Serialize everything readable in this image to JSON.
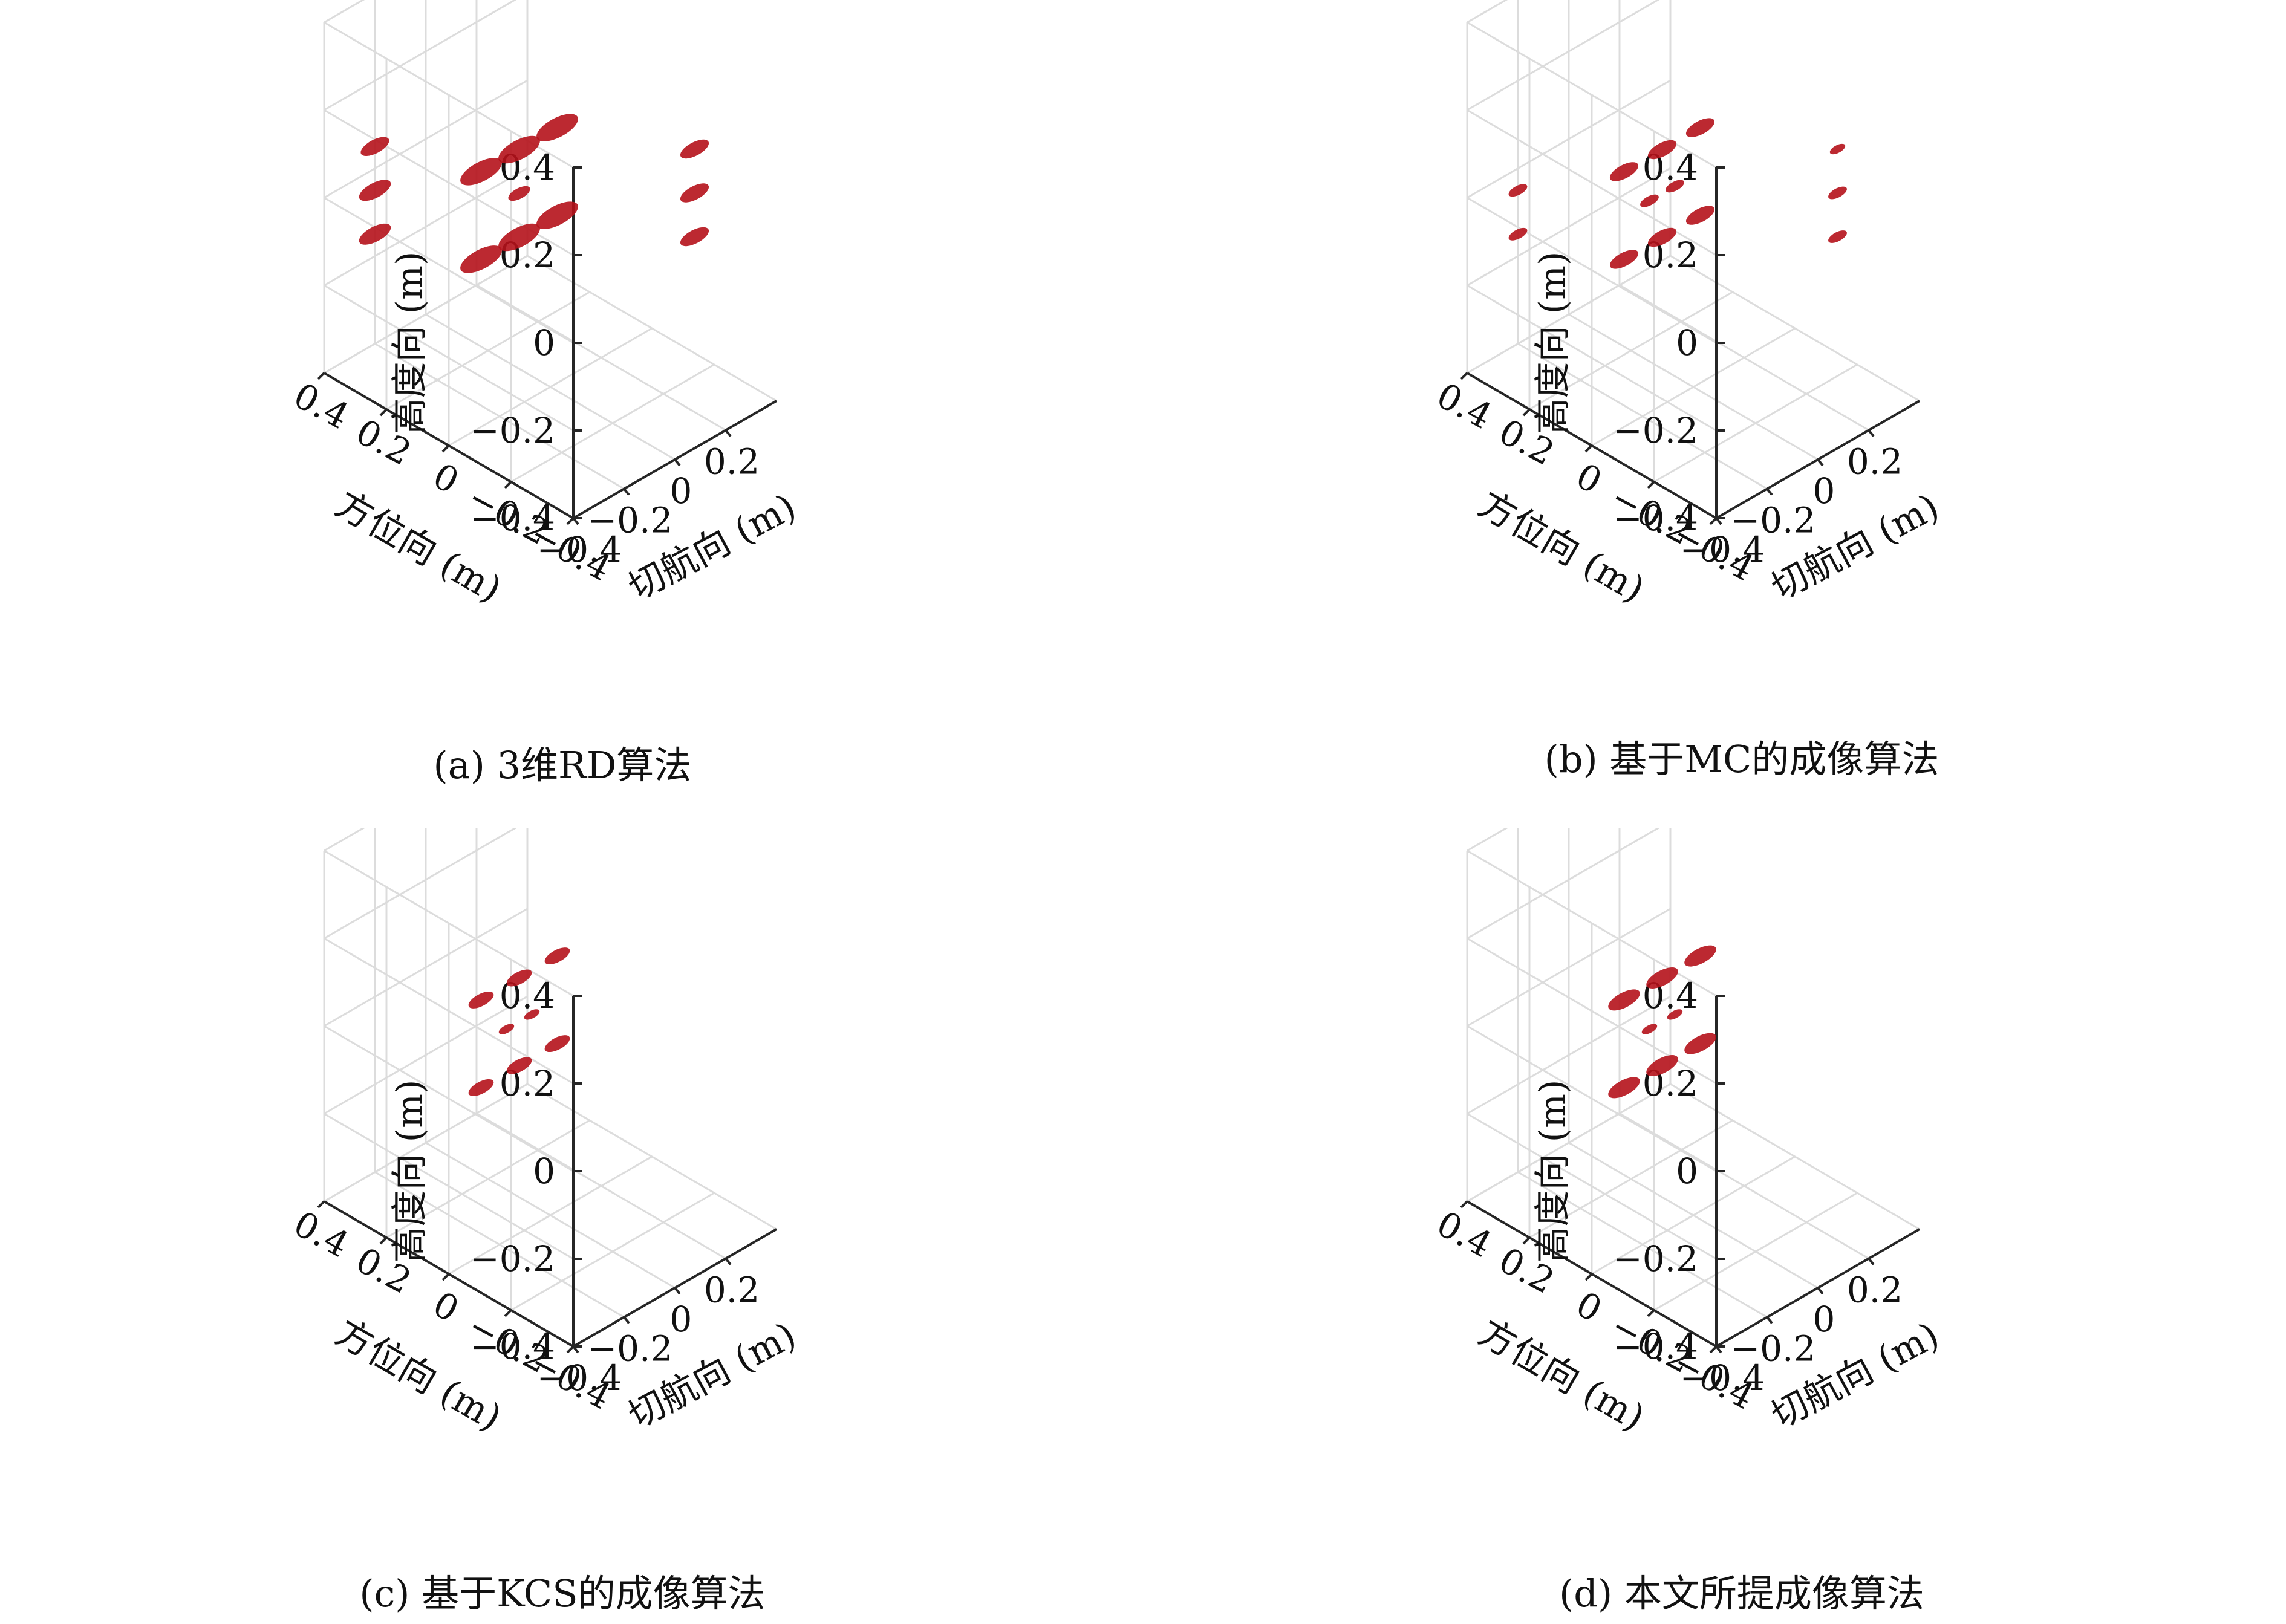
{
  "chart_data": [
    {
      "type": "scatter3d",
      "caption": "(a) 3维RD算法",
      "xlabel": "切航向 (m)",
      "ylabel": "方位向 (m)",
      "zlabel": "高度向 (m)",
      "x_ticks": [
        "−0.4",
        "−0.2",
        "0",
        "0.2"
      ],
      "y_ticks": [
        "0.4",
        "0.2",
        "0",
        "−0.2",
        "−0.4"
      ],
      "z_ticks": [
        "0.4",
        "0.2",
        "0",
        "−0.2",
        "−0.4"
      ],
      "xlim": [
        -0.4,
        0.4
      ],
      "ylim": [
        -0.4,
        0.4
      ],
      "zlim": [
        -0.4,
        0.4
      ],
      "grid": true,
      "point_color": "#b5121b",
      "targets": [
        {
          "x": -0.15,
          "y": 0.1,
          "z": 0.1,
          "size": 1.0
        },
        {
          "x": 0.0,
          "y": 0.1,
          "z": 0.1,
          "size": 1.0
        },
        {
          "x": 0.15,
          "y": 0.1,
          "z": 0.1,
          "size": 1.0
        },
        {
          "x": 0.0,
          "y": 0.1,
          "z": 0.0,
          "size": 0.4
        },
        {
          "x": -0.15,
          "y": 0.1,
          "z": -0.1,
          "size": 1.0
        },
        {
          "x": 0.0,
          "y": 0.1,
          "z": -0.1,
          "size": 1.0
        },
        {
          "x": 0.15,
          "y": 0.1,
          "z": -0.1,
          "size": 1.0
        },
        {
          "x": -0.2,
          "y": 0.4,
          "z": 0.05,
          "size": 0.6
        },
        {
          "x": -0.2,
          "y": 0.4,
          "z": -0.05,
          "size": 0.7
        },
        {
          "x": -0.2,
          "y": 0.4,
          "z": -0.15,
          "size": 0.7
        },
        {
          "x": 0.2,
          "y": -0.3,
          "z": 0.2,
          "size": 0.6
        },
        {
          "x": 0.2,
          "y": -0.3,
          "z": 0.1,
          "size": 0.6
        },
        {
          "x": 0.2,
          "y": -0.3,
          "z": 0.0,
          "size": 0.6
        }
      ]
    },
    {
      "type": "scatter3d",
      "caption": "(b) 基于MC的成像算法",
      "xlabel": "切航向 (m)",
      "ylabel": "方位向 (m)",
      "zlabel": "高度向 (m)",
      "x_ticks": [
        "−0.4",
        "−0.2",
        "0",
        "0.2"
      ],
      "y_ticks": [
        "0.4",
        "0.2",
        "0",
        "−0.2",
        "−0.4"
      ],
      "z_ticks": [
        "0.4",
        "0.2",
        "0",
        "−0.2",
        "−0.4"
      ],
      "xlim": [
        -0.4,
        0.4
      ],
      "ylim": [
        -0.4,
        0.4
      ],
      "zlim": [
        -0.4,
        0.4
      ],
      "grid": true,
      "point_color": "#b5121b",
      "targets": [
        {
          "x": -0.15,
          "y": 0.1,
          "z": 0.1,
          "size": 0.6
        },
        {
          "x": 0.0,
          "y": 0.1,
          "z": 0.1,
          "size": 0.6
        },
        {
          "x": 0.15,
          "y": 0.1,
          "z": 0.1,
          "size": 0.6
        },
        {
          "x": -0.05,
          "y": 0.1,
          "z": 0.0,
          "size": 0.3
        },
        {
          "x": 0.05,
          "y": 0.1,
          "z": 0.0,
          "size": 0.3
        },
        {
          "x": -0.15,
          "y": 0.1,
          "z": -0.1,
          "size": 0.6
        },
        {
          "x": 0.0,
          "y": 0.1,
          "z": -0.1,
          "size": 0.6
        },
        {
          "x": 0.15,
          "y": 0.1,
          "z": -0.1,
          "size": 0.6
        },
        {
          "x": -0.2,
          "y": 0.4,
          "z": -0.05,
          "size": 0.3
        },
        {
          "x": -0.2,
          "y": 0.4,
          "z": -0.15,
          "size": 0.3
        },
        {
          "x": 0.2,
          "y": -0.3,
          "z": 0.2,
          "size": 0.2
        },
        {
          "x": 0.2,
          "y": -0.3,
          "z": 0.1,
          "size": 0.3
        },
        {
          "x": 0.2,
          "y": -0.3,
          "z": 0.0,
          "size": 0.3
        }
      ]
    },
    {
      "type": "scatter3d",
      "caption": "(c) 基于KCS的成像算法",
      "xlabel": "切航向 (m)",
      "ylabel": "方位向 (m)",
      "zlabel": "高度向 (m)",
      "x_ticks": [
        "−0.4",
        "−0.2",
        "0",
        "0.2"
      ],
      "y_ticks": [
        "0.4",
        "0.2",
        "0",
        "−0.2",
        "−0.4"
      ],
      "z_ticks": [
        "0.4",
        "0.2",
        "0",
        "−0.2",
        "−0.4"
      ],
      "xlim": [
        -0.4,
        0.4
      ],
      "ylim": [
        -0.4,
        0.4
      ],
      "zlim": [
        -0.4,
        0.4
      ],
      "grid": true,
      "point_color": "#b5121b",
      "targets": [
        {
          "x": -0.15,
          "y": 0.1,
          "z": 0.1,
          "size": 0.5
        },
        {
          "x": 0.0,
          "y": 0.1,
          "z": 0.1,
          "size": 0.5
        },
        {
          "x": 0.15,
          "y": 0.1,
          "z": 0.1,
          "size": 0.5
        },
        {
          "x": -0.05,
          "y": 0.1,
          "z": 0.0,
          "size": 0.2
        },
        {
          "x": 0.05,
          "y": 0.1,
          "z": 0.0,
          "size": 0.2
        },
        {
          "x": -0.15,
          "y": 0.1,
          "z": -0.1,
          "size": 0.5
        },
        {
          "x": 0.0,
          "y": 0.1,
          "z": -0.1,
          "size": 0.5
        },
        {
          "x": 0.15,
          "y": 0.1,
          "z": -0.1,
          "size": 0.5
        }
      ]
    },
    {
      "type": "scatter3d",
      "caption": "(d) 本文所提成像算法",
      "xlabel": "切航向 (m)",
      "ylabel": "方位向 (m)",
      "zlabel": "高度向 (m)",
      "x_ticks": [
        "−0.4",
        "−0.2",
        "0",
        "0.2"
      ],
      "y_ticks": [
        "0.4",
        "0.2",
        "0",
        "−0.2",
        "−0.4"
      ],
      "z_ticks": [
        "0.4",
        "0.2",
        "0",
        "−0.2",
        "−0.4"
      ],
      "xlim": [
        -0.4,
        0.4
      ],
      "ylim": [
        -0.4,
        0.4
      ],
      "zlim": [
        -0.4,
        0.4
      ],
      "grid": true,
      "point_color": "#b5121b",
      "targets": [
        {
          "x": -0.15,
          "y": 0.1,
          "z": 0.1,
          "size": 0.7
        },
        {
          "x": 0.0,
          "y": 0.1,
          "z": 0.1,
          "size": 0.7
        },
        {
          "x": 0.15,
          "y": 0.1,
          "z": 0.1,
          "size": 0.7
        },
        {
          "x": -0.05,
          "y": 0.1,
          "z": 0.0,
          "size": 0.2
        },
        {
          "x": 0.05,
          "y": 0.1,
          "z": 0.0,
          "size": 0.2
        },
        {
          "x": -0.15,
          "y": 0.1,
          "z": -0.1,
          "size": 0.7
        },
        {
          "x": 0.0,
          "y": 0.1,
          "z": -0.1,
          "size": 0.7
        },
        {
          "x": 0.15,
          "y": 0.1,
          "z": -0.1,
          "size": 0.7
        }
      ]
    }
  ]
}
